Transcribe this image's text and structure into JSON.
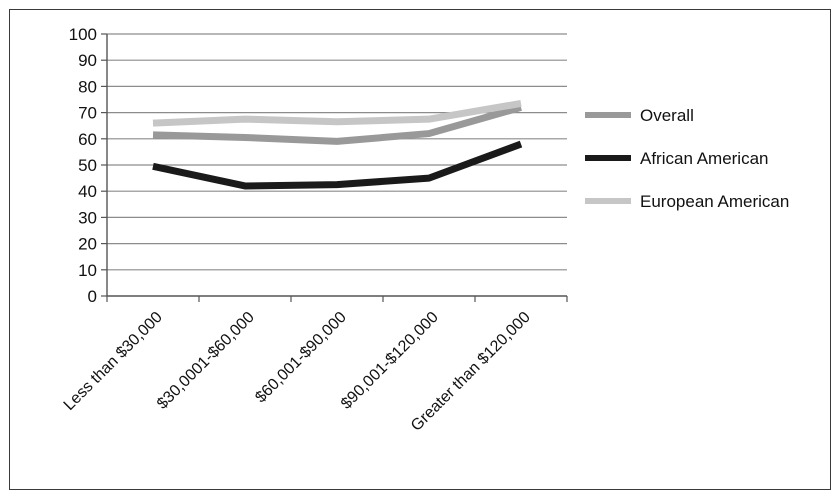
{
  "chart_data": {
    "type": "line",
    "categories": [
      "Less than $30,000",
      "$30,0001-$60,000",
      "$60,001-$90,000",
      "$90,001-$120,000",
      "Greater than $120,000"
    ],
    "series": [
      {
        "name": "Overall",
        "values": [
          61.5,
          60.5,
          59,
          62,
          72
        ],
        "color": "#999999"
      },
      {
        "name": "African American",
        "values": [
          49.5,
          42,
          42.5,
          45,
          58
        ],
        "color": "#1a1a1a"
      },
      {
        "name": "European American",
        "values": [
          66,
          67.5,
          66.5,
          67.5,
          73.5
        ],
        "color": "#c6c6c6"
      }
    ],
    "ylim": [
      0,
      100
    ],
    "yticks": [
      "0",
      "10",
      "20",
      "30",
      "40",
      "50",
      "60",
      "70",
      "80",
      "90",
      "100"
    ],
    "grid": true,
    "legend": "right"
  }
}
